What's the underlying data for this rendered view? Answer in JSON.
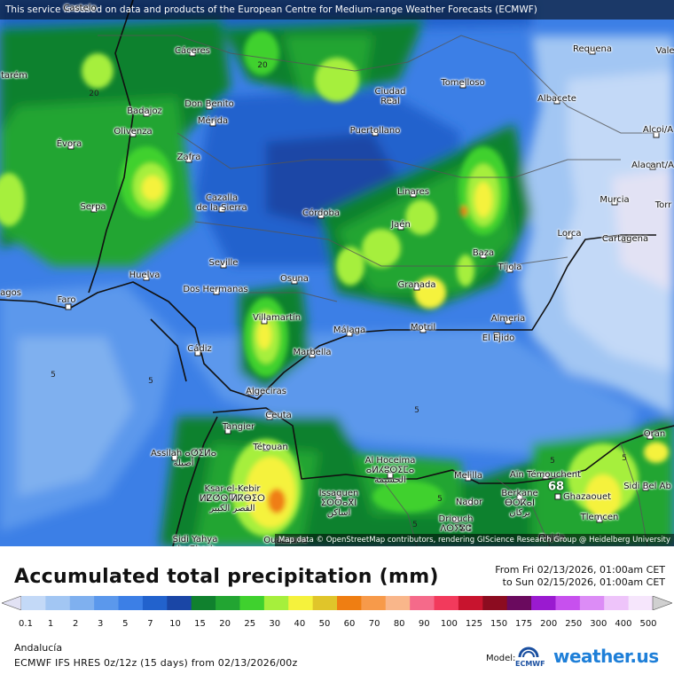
{
  "banner": "This service is based on data and products of the European Centre for Medium-range Weather Forecasts (ECMWF)",
  "attribution": "Map data © OpenStreetMap contributors, rendering GIScience Research Group @ Heidelberg University",
  "title": "Accumulated total precipitation (mm)",
  "period": {
    "from": "From Fri 02/13/2026, 01:00am CET",
    "to": "to Sun 02/15/2026, 01:00am CET"
  },
  "region": "Andalucía",
  "model_run": "ECMWF IFS HRES 0z/12z (15 days) from  02/13/2026/00z",
  "model_label": "Model:",
  "ecmwf_label": "ECMWF",
  "brand": {
    "name": "weather.",
    "suffix": "us"
  },
  "legend": {
    "ticks": [
      "0.1",
      "1",
      "2",
      "3",
      "5",
      "7",
      "10",
      "15",
      "20",
      "25",
      "30",
      "40",
      "50",
      "60",
      "70",
      "80",
      "90",
      "100",
      "125",
      "150",
      "175",
      "200",
      "250",
      "300",
      "400",
      "500"
    ],
    "colors": [
      "#e2e2f4",
      "#c3d9f7",
      "#a2c6f3",
      "#7fb0ef",
      "#5b98ec",
      "#3c7fe6",
      "#2262cd",
      "#1a46a6",
      "#10812e",
      "#22a532",
      "#3fd12e",
      "#a6ef3c",
      "#f5f23c",
      "#e0c52a",
      "#ef7e12",
      "#f79a4a",
      "#f9b68a",
      "#f56a8a",
      "#f23a5c",
      "#c8142e",
      "#8c0c20",
      "#6a0a5e",
      "#9a1ad0",
      "#c750ee",
      "#dc8cf6",
      "#eec4fa",
      "#f6e6fc",
      "#d0d0d0"
    ]
  },
  "cities": [
    {
      "name": "Cáceres"
    },
    {
      "name": "Don Benito"
    },
    {
      "name": "Mérida"
    },
    {
      "name": "Badajoz"
    },
    {
      "name": "Olivenza"
    },
    {
      "name": "Évora"
    },
    {
      "name": "Zafra"
    },
    {
      "name": "Serpa"
    },
    {
      "name": "Cazalla\nde la Sierra"
    },
    {
      "name": "Córdoba"
    },
    {
      "name": "Ciudad\nReal"
    },
    {
      "name": "Puertollano"
    },
    {
      "name": "Tomelloso"
    },
    {
      "name": "Requena"
    },
    {
      "name": "Albacete"
    },
    {
      "name": "Linares"
    },
    {
      "name": "Jaén"
    },
    {
      "name": "Murcia"
    },
    {
      "name": "Lorca"
    },
    {
      "name": "Cartagena"
    },
    {
      "name": "Baza"
    },
    {
      "name": "Tíjola"
    },
    {
      "name": "Huelva"
    },
    {
      "name": "Seville"
    },
    {
      "name": "Dos Hermanas"
    },
    {
      "name": "Osuna"
    },
    {
      "name": "Faro"
    },
    {
      "name": "Granada"
    },
    {
      "name": "Villamartín"
    },
    {
      "name": "Motril"
    },
    {
      "name": "Almeria"
    },
    {
      "name": "Málaga"
    },
    {
      "name": "El Ejido"
    },
    {
      "name": "Cádiz"
    },
    {
      "name": "Marbella"
    },
    {
      "name": "Algeciras"
    },
    {
      "name": "Ceuta"
    },
    {
      "name": "Tangier"
    },
    {
      "name": "Tétouan"
    },
    {
      "name": "Assilah ⴰⵚⵉⵍⴰ\nأصيلة"
    },
    {
      "name": "Al Hoceima\nⴰⵍⵃⵓⵙⵉⵎⴰ\nالحسيمة"
    },
    {
      "name": "Melilla"
    },
    {
      "name": "Nador"
    },
    {
      "name": "Issaguen\nⵉⵙⵙⴰⴳⵏ\nاساكن"
    },
    {
      "name": "Ksar-el-Kebir\nⵍⵇⵚⵕ ⵍⴽⴱⵉⵔ\nالقصر الكبير"
    },
    {
      "name": "Driouch\nⴷⵔⵢⵓⵛ"
    },
    {
      "name": "Berkane\nⴱⵔⴽⴰⵏ\nبركان"
    },
    {
      "name": "Ghazaouet"
    },
    {
      "name": "Aïn Témouchent"
    },
    {
      "name": "Oran"
    },
    {
      "name": "Sidi Bel Ab"
    },
    {
      "name": "Tlemcen"
    },
    {
      "name": "Oujda"
    },
    {
      "name": "Sidi Yahya\ndu Gharb"
    },
    {
      "name": "Ouazzane"
    },
    {
      "name": "Alcoi/A"
    },
    {
      "name": "Alacant/A"
    },
    {
      "name": "Torr"
    },
    {
      "name": "Vale"
    },
    {
      "name": "tarém"
    },
    {
      "name": "agos"
    },
    {
      "name": "Castelo"
    }
  ],
  "contour_labels": [
    "20",
    "20",
    "5",
    "5",
    "5",
    "5",
    "5",
    "5",
    "5",
    "5",
    "68"
  ]
}
